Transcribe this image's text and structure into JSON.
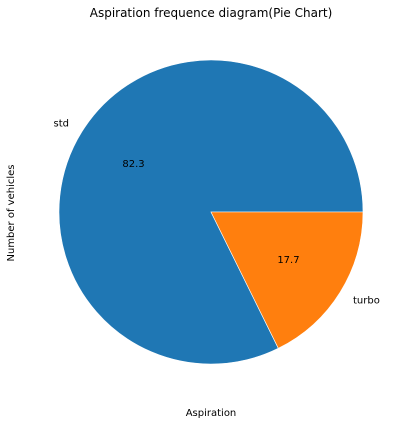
{
  "chart_data": {
    "type": "pie",
    "title": "Aspiration frequence diagram(Pie Chart)",
    "xlabel": "Aspiration",
    "ylabel": "Number of vehicles",
    "slices": [
      {
        "label": "std",
        "value": 82.3,
        "pct_label": "82.3",
        "color": "#1f77b4"
      },
      {
        "label": "turbo",
        "value": 17.7,
        "pct_label": "17.7",
        "color": "#ff7f0e"
      }
    ],
    "start_angle_deg": 0,
    "direction": "counterclockwise",
    "legend": false,
    "grid": false
  }
}
